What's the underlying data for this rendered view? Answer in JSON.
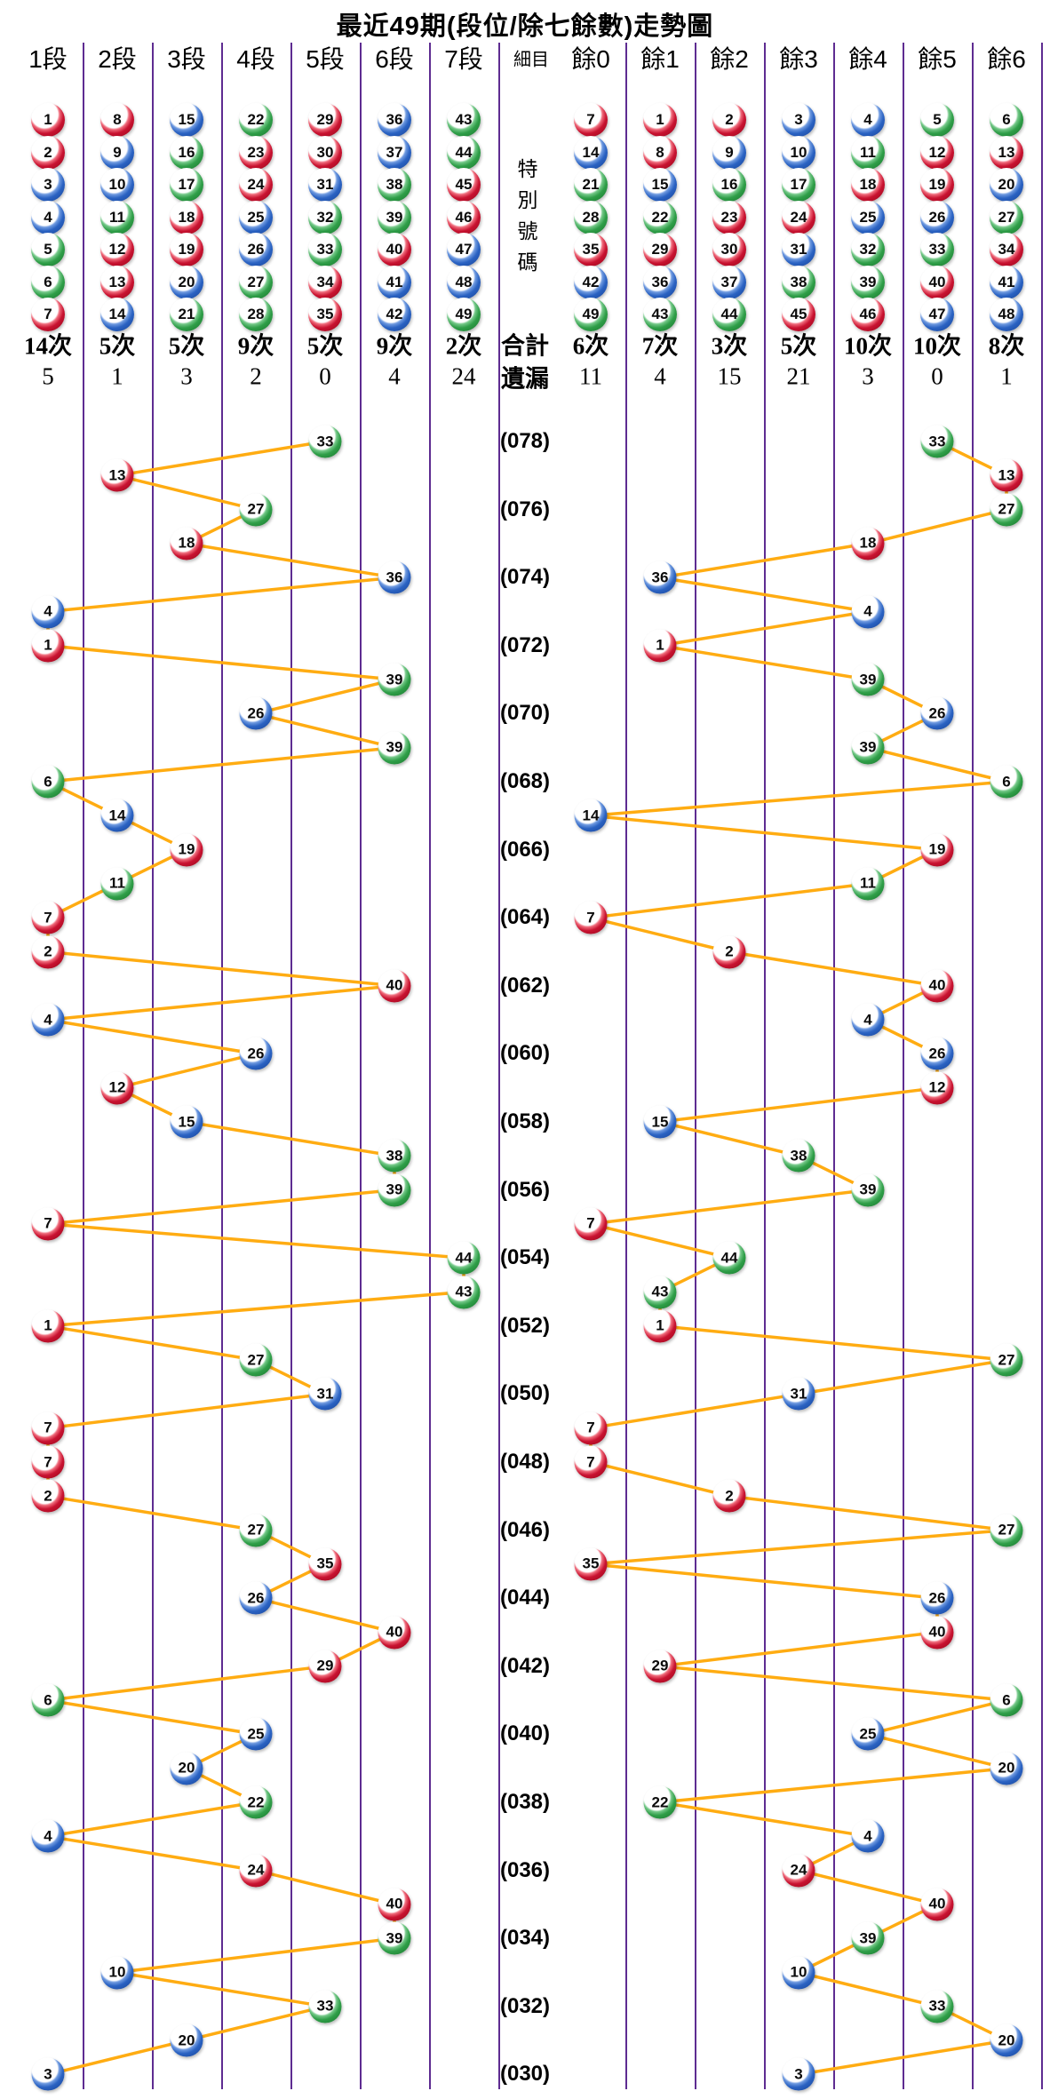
{
  "title": "最近49期(段位/除七餘數)走勢圖",
  "colors": {
    "red_ball": "#C81230",
    "blue_ball": "#2A62C2",
    "green_ball": "#2F9E48",
    "trend_line": "#FFAC12",
    "grid_line": "#5E2C91"
  },
  "ball_color_groups": {
    "red": [
      1,
      2,
      7,
      8,
      12,
      13,
      18,
      19,
      23,
      24,
      29,
      30,
      34,
      35,
      40,
      45,
      46
    ],
    "blue": [
      3,
      4,
      9,
      10,
      14,
      15,
      20,
      25,
      26,
      31,
      36,
      37,
      41,
      42,
      47,
      48
    ],
    "green": [
      5,
      6,
      11,
      16,
      17,
      21,
      22,
      27,
      28,
      32,
      33,
      38,
      39,
      43,
      44,
      49
    ]
  },
  "left_chart": {
    "col_headers": [
      "1段",
      "2段",
      "3段",
      "4段",
      "5段",
      "6段",
      "7段"
    ],
    "header_balls": [
      [
        1,
        2,
        3,
        4,
        5,
        6,
        7
      ],
      [
        8,
        9,
        10,
        11,
        12,
        13,
        14
      ],
      [
        15,
        16,
        17,
        18,
        19,
        20,
        21
      ],
      [
        22,
        23,
        24,
        25,
        26,
        27,
        28
      ],
      [
        29,
        30,
        31,
        32,
        33,
        34,
        35
      ],
      [
        36,
        37,
        38,
        39,
        40,
        41,
        42
      ],
      [
        43,
        44,
        45,
        46,
        47,
        48,
        49
      ]
    ],
    "counts": [
      "14次",
      "5次",
      "5次",
      "9次",
      "5次",
      "9次",
      "2次"
    ],
    "missing": [
      "5",
      "1",
      "3",
      "2",
      "0",
      "4",
      "24"
    ]
  },
  "center": {
    "header": "細目",
    "special_label": "特別號碼",
    "total_label": "合計",
    "missing_label": "遺漏",
    "period_labels": [
      "(078)",
      "(076)",
      "(074)",
      "(072)",
      "(070)",
      "(068)",
      "(066)",
      "(064)",
      "(062)",
      "(060)",
      "(058)",
      "(056)",
      "(054)",
      "(052)",
      "(050)",
      "(048)",
      "(046)",
      "(044)",
      "(042)",
      "(040)",
      "(038)",
      "(036)",
      "(034)",
      "(032)",
      "(030)"
    ]
  },
  "right_chart": {
    "col_headers": [
      "餘0",
      "餘1",
      "餘2",
      "餘3",
      "餘4",
      "餘5",
      "餘6"
    ],
    "header_balls": [
      [
        7,
        14,
        21,
        28,
        35,
        42,
        49
      ],
      [
        1,
        8,
        15,
        22,
        29,
        36,
        43
      ],
      [
        2,
        9,
        16,
        23,
        30,
        37,
        44
      ],
      [
        3,
        10,
        17,
        24,
        31,
        38,
        45
      ],
      [
        4,
        11,
        18,
        25,
        32,
        39,
        46
      ],
      [
        5,
        12,
        19,
        26,
        33,
        40,
        47
      ],
      [
        6,
        13,
        20,
        27,
        34,
        41,
        48
      ]
    ],
    "counts": [
      "6次",
      "7次",
      "3次",
      "5次",
      "10次",
      "10次",
      "8次"
    ],
    "missing": [
      "11",
      "4",
      "15",
      "21",
      "3",
      "0",
      "1"
    ]
  },
  "chart_data": {
    "type": "line",
    "title": "最近49期(段位/除七餘數)走勢圖",
    "description": "Special-number trend over last 49 draws; left panel plots segment (1段-7段 = ceil(n/7)), right panel plots n mod 7 (餘0-餘6); newest draw (078) on top, oldest (030) at bottom.",
    "draws": [
      {
        "period": 78,
        "special": 33,
        "segment": 5,
        "mod7": 5
      },
      {
        "period": 77,
        "special": 13,
        "segment": 2,
        "mod7": 6
      },
      {
        "period": 76,
        "special": 27,
        "segment": 4,
        "mod7": 6
      },
      {
        "period": 75,
        "special": 18,
        "segment": 3,
        "mod7": 4
      },
      {
        "period": 74,
        "special": 36,
        "segment": 6,
        "mod7": 1
      },
      {
        "period": 73,
        "special": 4,
        "segment": 1,
        "mod7": 4
      },
      {
        "period": 72,
        "special": 1,
        "segment": 1,
        "mod7": 1
      },
      {
        "period": 71,
        "special": 39,
        "segment": 6,
        "mod7": 4
      },
      {
        "period": 70,
        "special": 26,
        "segment": 4,
        "mod7": 5
      },
      {
        "period": 69,
        "special": 39,
        "segment": 6,
        "mod7": 4
      },
      {
        "period": 68,
        "special": 6,
        "segment": 1,
        "mod7": 6
      },
      {
        "period": 67,
        "special": 14,
        "segment": 2,
        "mod7": 0
      },
      {
        "period": 66,
        "special": 19,
        "segment": 3,
        "mod7": 5
      },
      {
        "period": 65,
        "special": 11,
        "segment": 2,
        "mod7": 4
      },
      {
        "period": 64,
        "special": 7,
        "segment": 1,
        "mod7": 0
      },
      {
        "period": 63,
        "special": 2,
        "segment": 1,
        "mod7": 2
      },
      {
        "period": 62,
        "special": 40,
        "segment": 6,
        "mod7": 5
      },
      {
        "period": 61,
        "special": 4,
        "segment": 1,
        "mod7": 4
      },
      {
        "period": 60,
        "special": 26,
        "segment": 4,
        "mod7": 5
      },
      {
        "period": 59,
        "special": 12,
        "segment": 2,
        "mod7": 5
      },
      {
        "period": 58,
        "special": 15,
        "segment": 3,
        "mod7": 1
      },
      {
        "period": 57,
        "special": 38,
        "segment": 6,
        "mod7": 3
      },
      {
        "period": 56,
        "special": 39,
        "segment": 6,
        "mod7": 4
      },
      {
        "period": 55,
        "special": 7,
        "segment": 1,
        "mod7": 0
      },
      {
        "period": 54,
        "special": 44,
        "segment": 7,
        "mod7": 2
      },
      {
        "period": 53,
        "special": 43,
        "segment": 7,
        "mod7": 1
      },
      {
        "period": 52,
        "special": 1,
        "segment": 1,
        "mod7": 1
      },
      {
        "period": 51,
        "special": 27,
        "segment": 4,
        "mod7": 6
      },
      {
        "period": 50,
        "special": 31,
        "segment": 5,
        "mod7": 3
      },
      {
        "period": 49,
        "special": 7,
        "segment": 1,
        "mod7": 0
      },
      {
        "period": 48,
        "special": 7,
        "segment": 1,
        "mod7": 0
      },
      {
        "period": 47,
        "special": 2,
        "segment": 1,
        "mod7": 2
      },
      {
        "period": 46,
        "special": 27,
        "segment": 4,
        "mod7": 6
      },
      {
        "period": 45,
        "special": 35,
        "segment": 5,
        "mod7": 0
      },
      {
        "period": 44,
        "special": 26,
        "segment": 4,
        "mod7": 5
      },
      {
        "period": 43,
        "special": 40,
        "segment": 6,
        "mod7": 5
      },
      {
        "period": 42,
        "special": 29,
        "segment": 5,
        "mod7": 1
      },
      {
        "period": 41,
        "special": 6,
        "segment": 1,
        "mod7": 6
      },
      {
        "period": 40,
        "special": 25,
        "segment": 4,
        "mod7": 4
      },
      {
        "period": 39,
        "special": 20,
        "segment": 3,
        "mod7": 6
      },
      {
        "period": 38,
        "special": 22,
        "segment": 4,
        "mod7": 1
      },
      {
        "period": 37,
        "special": 4,
        "segment": 1,
        "mod7": 4
      },
      {
        "period": 36,
        "special": 24,
        "segment": 4,
        "mod7": 3
      },
      {
        "period": 35,
        "special": 40,
        "segment": 6,
        "mod7": 5
      },
      {
        "period": 34,
        "special": 39,
        "segment": 6,
        "mod7": 4
      },
      {
        "period": 33,
        "special": 10,
        "segment": 2,
        "mod7": 3
      },
      {
        "period": 32,
        "special": 33,
        "segment": 5,
        "mod7": 5
      },
      {
        "period": 31,
        "special": 20,
        "segment": 3,
        "mod7": 6
      },
      {
        "period": 30,
        "special": 3,
        "segment": 1,
        "mod7": 3
      }
    ]
  }
}
